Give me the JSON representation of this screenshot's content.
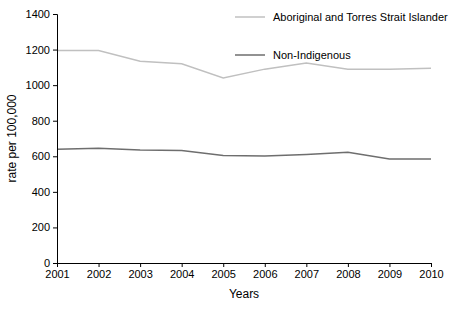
{
  "chart_data": {
    "type": "line",
    "x_label": "Years",
    "y_label": "rate per 100,000",
    "x": [
      2001,
      2002,
      2003,
      2004,
      2005,
      2006,
      2007,
      2008,
      2009,
      2010
    ],
    "series": [
      {
        "name": "Aboriginal and Torres Strait Islander",
        "color": "#c0c0c0",
        "values": [
          1195,
          1195,
          1135,
          1120,
          1040,
          1090,
          1125,
          1090,
          1090,
          1095
        ]
      },
      {
        "name": "Non-Indigenous",
        "color": "#6e6e6e",
        "values": [
          640,
          645,
          635,
          632,
          605,
          602,
          610,
          622,
          585,
          585
        ]
      }
    ],
    "xlim": [
      2001,
      2010
    ],
    "xticks": [
      2001,
      2002,
      2003,
      2004,
      2005,
      2006,
      2007,
      2008,
      2009,
      2010
    ],
    "ylim": [
      0,
      1400
    ],
    "yticks": [
      0,
      200,
      400,
      600,
      800,
      1000,
      1200,
      1400
    ],
    "grid": false,
    "legend": "upper right"
  }
}
